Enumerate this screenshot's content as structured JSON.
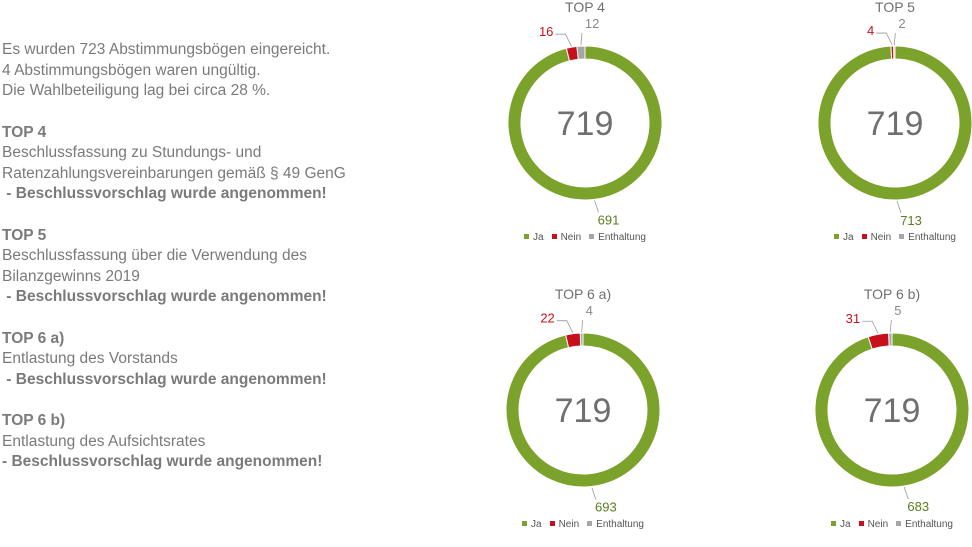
{
  "summary": {
    "line1": "Es wurden 723 Abstimmungsbögen eingereicht.",
    "line2": "4 Abstimmungsbögen waren ungültig.",
    "line3": "Die Wahlbeteiligung lag bei circa 28 %."
  },
  "sections": [
    {
      "title": "TOP 4",
      "lines": [
        "Beschlussfassung zu Stundungs- und",
        "Ratenzahlungsvereinbarungen gemäß § 49 GenG"
      ],
      "result": " - Beschlussvorschlag wurde angenommen!"
    },
    {
      "title": "TOP 5",
      "lines": [
        "Beschlussfassung über die Verwendung des",
        "Bilanzgewinns 2019"
      ],
      "result": " - Beschlussvorschlag wurde angenommen!"
    },
    {
      "title": "TOP 6 a)",
      "lines": [
        "Entlastung des Vorstands"
      ],
      "result": " - Beschlussvorschlag wurde angenommen!"
    },
    {
      "title": "TOP 6 b)",
      "lines": [
        "Entlastung des Aufsichtsrates"
      ],
      "result": "- Beschlussvorschlag wurde angenommen!"
    }
  ],
  "colors": {
    "ja": "#7ba22a",
    "nein": "#c8101c",
    "enthaltung": "#a6a6a6",
    "text": "#7a7a7a"
  },
  "chart_data": [
    {
      "type": "pie",
      "donut": true,
      "title": "TOP 4",
      "center_label": "719",
      "categories": [
        "Ja",
        "Nein",
        "Enthaltung"
      ],
      "values": [
        691,
        16,
        12
      ],
      "legend": "bottom"
    },
    {
      "type": "pie",
      "donut": true,
      "title": "TOP 5",
      "center_label": "719",
      "categories": [
        "Ja",
        "Nein",
        "Enthaltung"
      ],
      "values": [
        713,
        4,
        2
      ],
      "legend": "bottom"
    },
    {
      "type": "pie",
      "donut": true,
      "title": "TOP 6 a)",
      "center_label": "719",
      "categories": [
        "Ja",
        "Nein",
        "Enthaltung"
      ],
      "values": [
        693,
        22,
        4
      ],
      "legend": "bottom"
    },
    {
      "type": "pie",
      "donut": true,
      "title": "TOP 6 b)",
      "center_label": "719",
      "categories": [
        "Ja",
        "Nein",
        "Enthaltung"
      ],
      "values": [
        683,
        31,
        5
      ],
      "legend": "bottom"
    }
  ]
}
